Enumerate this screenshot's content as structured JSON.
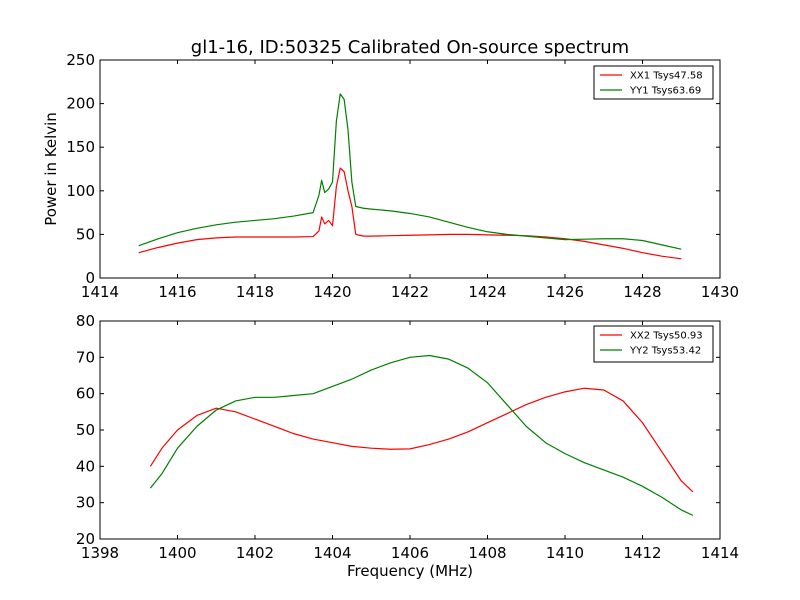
{
  "figure": {
    "title": "gl1-16, ID:50325 Calibrated On-source spectrum"
  },
  "chart_data": [
    {
      "type": "line",
      "title": "gl1-16, ID:50325 Calibrated On-source spectrum",
      "xlabel": "",
      "ylabel": "Power in Kelvin",
      "xlim": [
        1414,
        1430
      ],
      "ylim": [
        0,
        250
      ],
      "xticks": [
        "1414",
        "1416",
        "1418",
        "1420",
        "1422",
        "1424",
        "1426",
        "1428",
        "1430"
      ],
      "yticks": [
        "0",
        "50",
        "100",
        "150",
        "200",
        "250"
      ],
      "grid": false,
      "legend": "top-right",
      "series": [
        {
          "name": "XX1 Tsys47.58",
          "color": "#ff0000",
          "x": [
            1415.0,
            1415.5,
            1416.0,
            1416.5,
            1417.0,
            1417.5,
            1418.0,
            1418.5,
            1419.0,
            1419.5,
            1419.65,
            1419.72,
            1419.8,
            1419.9,
            1420.0,
            1420.1,
            1420.2,
            1420.3,
            1420.4,
            1420.5,
            1420.6,
            1420.8,
            1421.0,
            1421.5,
            1422.0,
            1422.5,
            1423.0,
            1423.5,
            1424.0,
            1424.5,
            1425.0,
            1425.5,
            1426.0,
            1426.5,
            1427.0,
            1427.5,
            1428.0,
            1428.5,
            1429.0
          ],
          "y": [
            29,
            35,
            40,
            44,
            46,
            47,
            47,
            47,
            47,
            47.5,
            54,
            70,
            62,
            66,
            60,
            105,
            126,
            122,
            100,
            82,
            50,
            48,
            48,
            48.5,
            49,
            49.5,
            50,
            50,
            49.5,
            49,
            48.5,
            47,
            45,
            42,
            38,
            34,
            29,
            25,
            22
          ]
        },
        {
          "name": "YY1 Tsys63.69",
          "color": "#008000",
          "x": [
            1415.0,
            1415.5,
            1416.0,
            1416.5,
            1417.0,
            1417.5,
            1418.0,
            1418.5,
            1419.0,
            1419.5,
            1419.65,
            1419.72,
            1419.8,
            1419.9,
            1420.0,
            1420.1,
            1420.2,
            1420.3,
            1420.4,
            1420.5,
            1420.6,
            1420.8,
            1421.0,
            1421.5,
            1422.0,
            1422.5,
            1423.0,
            1423.5,
            1424.0,
            1424.5,
            1425.0,
            1425.5,
            1426.0,
            1426.5,
            1427.0,
            1427.5,
            1428.0,
            1428.5,
            1429.0
          ],
          "y": [
            37,
            45,
            52,
            57,
            61,
            64,
            66,
            68,
            71,
            75,
            95,
            112,
            98,
            102,
            110,
            180,
            211,
            205,
            170,
            110,
            82,
            80,
            79,
            77,
            74,
            70,
            64,
            58,
            53,
            50,
            48,
            46,
            44,
            44.5,
            45,
            45,
            43,
            38,
            33
          ]
        }
      ]
    },
    {
      "type": "line",
      "title": "",
      "xlabel": "Frequency (MHz)",
      "ylabel": "",
      "xlim": [
        1398,
        1414
      ],
      "ylim": [
        20,
        80
      ],
      "xticks": [
        "1398",
        "1400",
        "1402",
        "1404",
        "1406",
        "1408",
        "1410",
        "1412",
        "1414"
      ],
      "yticks": [
        "20",
        "30",
        "40",
        "50",
        "60",
        "70",
        "80"
      ],
      "grid": false,
      "legend": "top-right",
      "series": [
        {
          "name": "XX2 Tsys50.93",
          "color": "#ff0000",
          "x": [
            1399.3,
            1399.6,
            1400.0,
            1400.5,
            1401.0,
            1401.5,
            1402.0,
            1402.5,
            1403.0,
            1403.5,
            1404.0,
            1404.5,
            1405.0,
            1405.5,
            1406.0,
            1406.5,
            1407.0,
            1407.5,
            1408.0,
            1408.5,
            1409.0,
            1409.5,
            1410.0,
            1410.5,
            1411.0,
            1411.5,
            1412.0,
            1412.5,
            1413.0,
            1413.3
          ],
          "y": [
            40,
            45,
            50,
            54,
            56,
            55,
            53,
            51,
            49,
            47.5,
            46.5,
            45.5,
            45,
            44.7,
            44.8,
            46,
            47.5,
            49.5,
            52,
            54.5,
            57,
            59,
            60.5,
            61.5,
            61,
            58,
            52,
            44,
            36,
            33
          ]
        },
        {
          "name": "YY2 Tsys53.42",
          "color": "#008000",
          "x": [
            1399.3,
            1399.6,
            1400.0,
            1400.5,
            1401.0,
            1401.5,
            1402.0,
            1402.5,
            1403.0,
            1403.5,
            1404.0,
            1404.5,
            1405.0,
            1405.5,
            1406.0,
            1406.5,
            1407.0,
            1407.5,
            1408.0,
            1408.5,
            1409.0,
            1409.5,
            1410.0,
            1410.5,
            1411.0,
            1411.5,
            1412.0,
            1412.5,
            1413.0,
            1413.3
          ],
          "y": [
            34,
            38,
            45,
            51,
            55.5,
            58,
            59,
            59,
            59.5,
            60,
            62,
            64,
            66.5,
            68.5,
            70,
            70.5,
            69.5,
            67,
            63,
            57,
            51,
            46.5,
            43.5,
            41,
            39,
            37,
            34.5,
            31.5,
            28,
            26.5
          ]
        }
      ]
    }
  ]
}
